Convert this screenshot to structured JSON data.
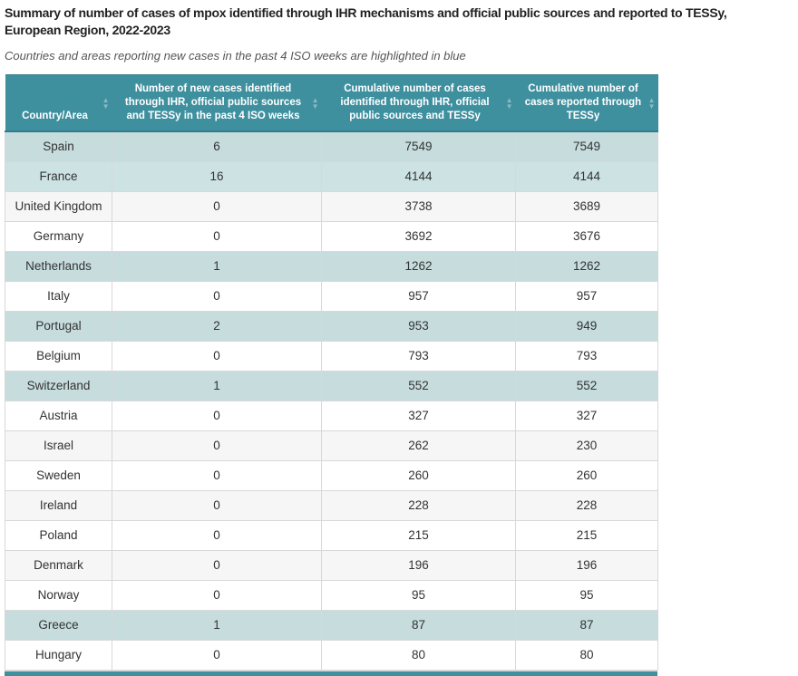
{
  "page": {
    "title": "Summary of number of cases of mpox identified through IHR mechanisms and official public sources and reported to TESSy, European Region, 2022-2023",
    "subtitle": "Countries and areas reporting new cases in the past 4 ISO weeks are highlighted in blue"
  },
  "icons": {
    "sort_asc": "▲",
    "sort_desc": "▼"
  },
  "colors": {
    "header_bg": "#3f909f",
    "highlight_blue": "#cde2e3",
    "stripe_gray": "#f6f6f6"
  },
  "table": {
    "columns": [
      {
        "label": "Country/Area"
      },
      {
        "label": "Number of new cases identified through IHR, official public sources and TESSy in the past 4 ISO weeks"
      },
      {
        "label": "Cumulative number of cases identified through IHR, official public sources and TESSy"
      },
      {
        "label": "Cumulative number of cases reported through TESSy"
      }
    ],
    "rows": [
      {
        "country": "Spain",
        "new_cases": "6",
        "cumulative_ihr": "7549",
        "cumulative_tessy": "7549",
        "highlighted": true
      },
      {
        "country": "France",
        "new_cases": "16",
        "cumulative_ihr": "4144",
        "cumulative_tessy": "4144",
        "highlighted": true
      },
      {
        "country": "United Kingdom",
        "new_cases": "0",
        "cumulative_ihr": "3738",
        "cumulative_tessy": "3689",
        "highlighted": false
      },
      {
        "country": "Germany",
        "new_cases": "0",
        "cumulative_ihr": "3692",
        "cumulative_tessy": "3676",
        "highlighted": false
      },
      {
        "country": "Netherlands",
        "new_cases": "1",
        "cumulative_ihr": "1262",
        "cumulative_tessy": "1262",
        "highlighted": true
      },
      {
        "country": "Italy",
        "new_cases": "0",
        "cumulative_ihr": "957",
        "cumulative_tessy": "957",
        "highlighted": false
      },
      {
        "country": "Portugal",
        "new_cases": "2",
        "cumulative_ihr": "953",
        "cumulative_tessy": "949",
        "highlighted": true
      },
      {
        "country": "Belgium",
        "new_cases": "0",
        "cumulative_ihr": "793",
        "cumulative_tessy": "793",
        "highlighted": false
      },
      {
        "country": "Switzerland",
        "new_cases": "1",
        "cumulative_ihr": "552",
        "cumulative_tessy": "552",
        "highlighted": true
      },
      {
        "country": "Austria",
        "new_cases": "0",
        "cumulative_ihr": "327",
        "cumulative_tessy": "327",
        "highlighted": false
      },
      {
        "country": "Israel",
        "new_cases": "0",
        "cumulative_ihr": "262",
        "cumulative_tessy": "230",
        "highlighted": false
      },
      {
        "country": "Sweden",
        "new_cases": "0",
        "cumulative_ihr": "260",
        "cumulative_tessy": "260",
        "highlighted": false
      },
      {
        "country": "Ireland",
        "new_cases": "0",
        "cumulative_ihr": "228",
        "cumulative_tessy": "228",
        "highlighted": false
      },
      {
        "country": "Poland",
        "new_cases": "0",
        "cumulative_ihr": "215",
        "cumulative_tessy": "215",
        "highlighted": false
      },
      {
        "country": "Denmark",
        "new_cases": "0",
        "cumulative_ihr": "196",
        "cumulative_tessy": "196",
        "highlighted": false
      },
      {
        "country": "Norway",
        "new_cases": "0",
        "cumulative_ihr": "95",
        "cumulative_tessy": "95",
        "highlighted": false
      },
      {
        "country": "Greece",
        "new_cases": "1",
        "cumulative_ihr": "87",
        "cumulative_tessy": "87",
        "highlighted": true
      },
      {
        "country": "Hungary",
        "new_cases": "0",
        "cumulative_ihr": "80",
        "cumulative_tessy": "80",
        "highlighted": false
      }
    ]
  }
}
